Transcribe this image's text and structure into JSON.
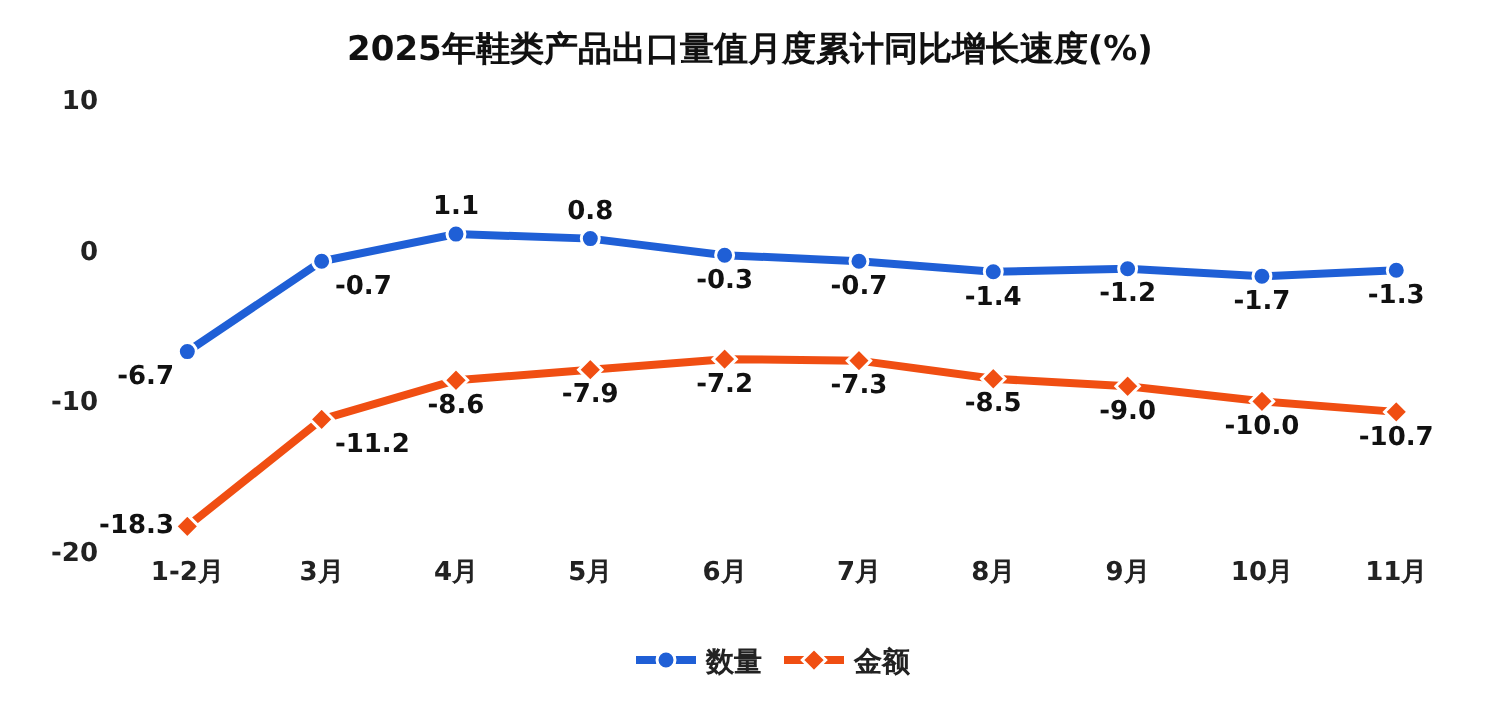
{
  "chart_data": {
    "type": "line",
    "title": "2025年鞋类产品出口量值月度累计同比增长速度(%)",
    "categories": [
      "1-2月",
      "3月",
      "4月",
      "5月",
      "6月",
      "7月",
      "8月",
      "9月",
      "10月",
      "11月"
    ],
    "series": [
      {
        "name": "数量",
        "color": "#1f5fd6",
        "marker": "circle",
        "values": [
          -6.7,
          -0.7,
          1.1,
          0.8,
          -0.3,
          -0.7,
          -1.4,
          -1.2,
          -1.7,
          -1.3
        ],
        "value_labels": [
          "-6.7",
          "-0.7",
          "1.1",
          "0.8",
          "-0.3",
          "-0.7",
          "-1.4",
          "-1.2",
          "-1.7",
          "-1.3"
        ]
      },
      {
        "name": "金额",
        "color": "#f04e12",
        "marker": "diamond",
        "values": [
          -18.3,
          -11.2,
          -8.6,
          -7.9,
          -7.2,
          -7.3,
          -8.5,
          -9.0,
          -10.0,
          -10.7
        ],
        "value_labels": [
          "-18.3",
          "-11.2",
          "-8.6",
          "-7.9",
          "-7.2",
          "-7.3",
          "-8.5",
          "-9.0",
          "-10.0",
          "-10.7"
        ]
      }
    ],
    "ylim": [
      -20,
      10
    ],
    "yticks": [
      -20,
      -10,
      0,
      10
    ],
    "legend": "bottom",
    "line_style": "solid"
  }
}
